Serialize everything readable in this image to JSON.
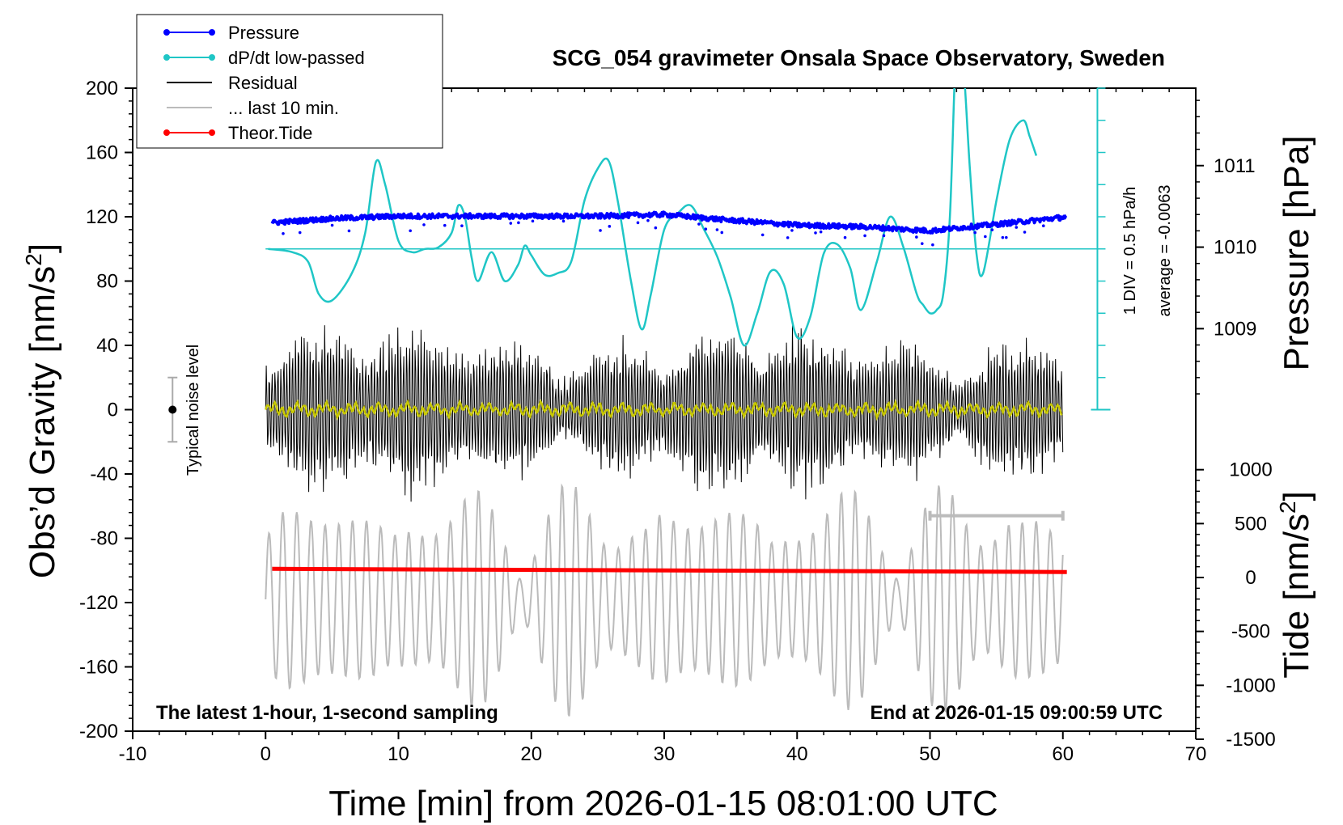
{
  "chart_data": {
    "type": "line",
    "title": "SCG_054 gravimeter Onsala Space Observatory, Sweden",
    "xlabel": "Time [min] from 2026-01-15 08:01:00 UTC",
    "ylabel_main": "Obs’d Gravity [nm/s",
    "ylabel_main_sup": "2",
    "ylabel_main_close": "]",
    "ylabel_pressure": "Pressure [hPa]",
    "ylabel_tide": "Tide [nm/s",
    "ylabel_tide_sup": "2",
    "ylabel_tide_close": "]",
    "xlim": [
      -10,
      70
    ],
    "ylim": [
      -200,
      200
    ],
    "x_ticks": [
      "-10",
      "0",
      "10",
      "20",
      "30",
      "40",
      "50",
      "60",
      "70"
    ],
    "y_ticks": [
      "200",
      "160",
      "120",
      "80",
      "40",
      "0",
      "-40",
      "-80",
      "-120",
      "-160",
      "-200"
    ],
    "pressure_axis": {
      "ticks": [
        "1011",
        "1010",
        "1009"
      ],
      "values": [
        1011,
        1010,
        1009
      ],
      "ylim_mapping": [
        1008.0,
        1012.0
      ]
    },
    "tide_axis": {
      "ticks": [
        "1000",
        "500",
        "0",
        "-500",
        "-1000",
        "-1500"
      ],
      "values": [
        1000,
        500,
        0,
        -500,
        -1000,
        -1500
      ]
    },
    "legend": [
      {
        "label": "Pressure",
        "color": "#0000ff",
        "marker": true
      },
      {
        "label": "dP/dt low-passed",
        "color": "#1fc6c6",
        "marker": true
      },
      {
        "label": "Residual",
        "color": "#000000",
        "marker": false
      },
      {
        "label": "... last 10 min.",
        "color": "#bbbbbb",
        "marker": false
      },
      {
        "label": "Theor.Tide",
        "color": "#ff0000",
        "marker": true
      }
    ],
    "legend_position": "top-left",
    "noise_label": "Typical noise level",
    "noise_bar": {
      "x": -7,
      "center": 0,
      "half_range": 20
    },
    "scale_bar_labels": {
      "div": "1 DIV = 0.5 hPa/h",
      "average": "average = -0.0063"
    },
    "dpdt_zero_level": 100,
    "footer_left": "The latest 1-hour, 1-second sampling",
    "footer_right": "End at 2026-01-15 09:00:59 UTC",
    "series": [
      {
        "name": "Pressure",
        "color": "#0000ff",
        "x": [
          0.5,
          5,
          10,
          15,
          20,
          25,
          30,
          35,
          40,
          45,
          50,
          53,
          55,
          60.3
        ],
        "values": [
          1010.3,
          1010.35,
          1010.38,
          1010.38,
          1010.38,
          1010.38,
          1010.4,
          1010.33,
          1010.27,
          1010.25,
          1010.2,
          1010.25,
          1010.28,
          1010.37
        ]
      },
      {
        "name": "dP/dt low-passed",
        "color": "#1fc6c6",
        "x": [
          0.2,
          2,
          3.2,
          4,
          5,
          6.5,
          7.5,
          8.3,
          9,
          10,
          11,
          12,
          13,
          14,
          14.5,
          15,
          15.5,
          16,
          17,
          18,
          19,
          19.5,
          20,
          21,
          22,
          23,
          24,
          25,
          25.8,
          26.5,
          27.5,
          28.3,
          29,
          30,
          31,
          32,
          33,
          34,
          35,
          36,
          37,
          38,
          39,
          40,
          41,
          42,
          43,
          44,
          44.8,
          46,
          47,
          48,
          49,
          49.5,
          50,
          50.5,
          51,
          51.5,
          52,
          52.5,
          53,
          53.5,
          54,
          55,
          56,
          57,
          57.5,
          58
        ],
        "values": [
          100,
          98,
          92,
          72,
          68,
          85,
          110,
          154,
          140,
          105,
          98,
          100,
          101,
          110,
          127,
          120,
          95,
          80,
          98,
          80,
          90,
          102,
          96,
          84,
          85,
          92,
          130,
          150,
          155,
          130,
          80,
          50,
          72,
          112,
          122,
          127,
          112,
          95,
          70,
          40,
          60,
          86,
          78,
          45,
          58,
          97,
          103,
          88,
          62,
          92,
          120,
          101,
          72,
          65,
          60,
          62,
          72,
          120,
          230,
          215,
          150,
          97,
          85,
          130,
          168,
          180,
          170,
          158
        ]
      },
      {
        "name": "Residual",
        "color": "#000000",
        "x": [
          0,
          60
        ]
      },
      {
        "name": "... last 10 min.",
        "color": "#bbbbbb",
        "x": [
          0,
          60
        ]
      },
      {
        "name": "Theor.Tide",
        "color": "#ff0000",
        "x": [
          0.5,
          60.3
        ],
        "values": [
          -99,
          -101
        ]
      }
    ]
  }
}
